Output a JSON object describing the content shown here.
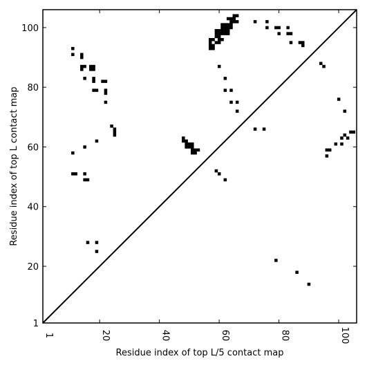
{
  "chart_data": {
    "type": "scatter",
    "xlabel": "Residue index of top L/5 contact map",
    "ylabel": "Residue index of top L contact map",
    "xlim": [
      1,
      106
    ],
    "ylim": [
      1,
      106
    ],
    "xticks": [
      1,
      20,
      40,
      60,
      80,
      100
    ],
    "yticks": [
      1,
      20,
      40,
      60,
      80,
      100
    ],
    "xtick_labels": [
      "1",
      "20",
      "40",
      "60",
      "80",
      "100"
    ],
    "ytick_labels": [
      "1",
      "20",
      "40",
      "60",
      "80",
      "100"
    ],
    "x_tick_label_rotation": "vertical",
    "grid": false,
    "legend": "none",
    "marker": "square",
    "marker_color": "#000000",
    "diagonal_line": {
      "from": [
        1,
        1
      ],
      "to": [
        106,
        106
      ],
      "color": "#000000"
    },
    "series": [
      {
        "points": [
          [
            11,
            93
          ],
          [
            11,
            91
          ],
          [
            14,
            91
          ],
          [
            14,
            90
          ],
          [
            14,
            87
          ],
          [
            15,
            87
          ],
          [
            14,
            86
          ],
          [
            17,
            87
          ],
          [
            17,
            86
          ],
          [
            18,
            86
          ],
          [
            18,
            87
          ],
          [
            15,
            83
          ],
          [
            18,
            83
          ],
          [
            18,
            82
          ],
          [
            18,
            79
          ],
          [
            19,
            79
          ],
          [
            21,
            82
          ],
          [
            22,
            82
          ],
          [
            22,
            79
          ],
          [
            22,
            78
          ],
          [
            22,
            75
          ],
          [
            24,
            67
          ],
          [
            25,
            66
          ],
          [
            25,
            65
          ],
          [
            25,
            64
          ],
          [
            19,
            62
          ],
          [
            15,
            60
          ],
          [
            11,
            58
          ],
          [
            11,
            51
          ],
          [
            12,
            51
          ],
          [
            15,
            51
          ],
          [
            15,
            49
          ],
          [
            16,
            49
          ],
          [
            16,
            28
          ],
          [
            19,
            28
          ],
          [
            19,
            25
          ],
          [
            48,
            63
          ],
          [
            48,
            62
          ],
          [
            49,
            62
          ],
          [
            49,
            61
          ],
          [
            50,
            61
          ],
          [
            51,
            61
          ],
          [
            49,
            60
          ],
          [
            50,
            60
          ],
          [
            51,
            60
          ],
          [
            51,
            59
          ],
          [
            52,
            59
          ],
          [
            53,
            59
          ],
          [
            51,
            58
          ],
          [
            52,
            58
          ],
          [
            59,
            52
          ],
          [
            60,
            51
          ],
          [
            62,
            49
          ],
          [
            57,
            96
          ],
          [
            58,
            96
          ],
          [
            57,
            95
          ],
          [
            59,
            95
          ],
          [
            60,
            95
          ],
          [
            57,
            94
          ],
          [
            58,
            94
          ],
          [
            57,
            93
          ],
          [
            58,
            93
          ],
          [
            59,
            99
          ],
          [
            60,
            99
          ],
          [
            61,
            99
          ],
          [
            59,
            98
          ],
          [
            60,
            98
          ],
          [
            61,
            98
          ],
          [
            59,
            97
          ],
          [
            60,
            97
          ],
          [
            61,
            96
          ],
          [
            60,
            96
          ],
          [
            61,
            101
          ],
          [
            62,
            101
          ],
          [
            63,
            101
          ],
          [
            61,
            100
          ],
          [
            62,
            100
          ],
          [
            63,
            100
          ],
          [
            64,
            100
          ],
          [
            62,
            99
          ],
          [
            63,
            99
          ],
          [
            62,
            98
          ],
          [
            63,
            98
          ],
          [
            63,
            103
          ],
          [
            64,
            103
          ],
          [
            65,
            103
          ],
          [
            64,
            102
          ],
          [
            65,
            102
          ],
          [
            66,
            102
          ],
          [
            65,
            104
          ],
          [
            66,
            104
          ],
          [
            64,
            101
          ],
          [
            60,
            87
          ],
          [
            62,
            83
          ],
          [
            62,
            79
          ],
          [
            64,
            79
          ],
          [
            64,
            75
          ],
          [
            66,
            75
          ],
          [
            66,
            72
          ],
          [
            72,
            102
          ],
          [
            76,
            102
          ],
          [
            76,
            100
          ],
          [
            79,
            100
          ],
          [
            80,
            100
          ],
          [
            80,
            98
          ],
          [
            83,
            100
          ],
          [
            83,
            98
          ],
          [
            84,
            98
          ],
          [
            84,
            95
          ],
          [
            87,
            95
          ],
          [
            88,
            95
          ],
          [
            88,
            94
          ],
          [
            94,
            88
          ],
          [
            95,
            87
          ],
          [
            72,
            66
          ],
          [
            75,
            66
          ],
          [
            79,
            22
          ],
          [
            86,
            18
          ],
          [
            90,
            14
          ],
          [
            100,
            76
          ],
          [
            102,
            72
          ],
          [
            96,
            59
          ],
          [
            97,
            59
          ],
          [
            96,
            57
          ],
          [
            99,
            61
          ],
          [
            101,
            61
          ],
          [
            101,
            63
          ],
          [
            102,
            64
          ],
          [
            103,
            63
          ],
          [
            104,
            65
          ],
          [
            105,
            65
          ]
        ]
      }
    ]
  }
}
